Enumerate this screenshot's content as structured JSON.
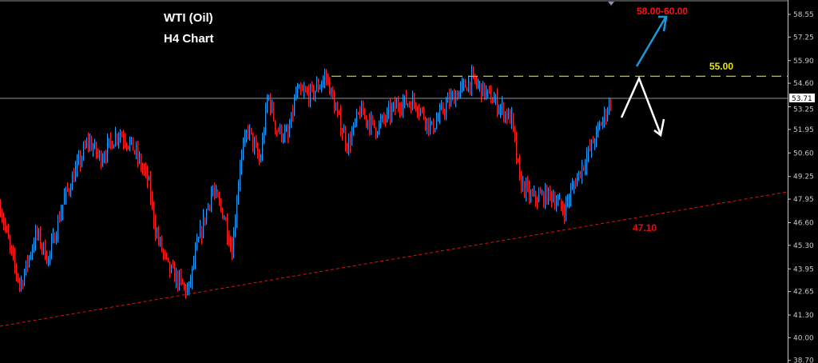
{
  "chart_data": {
    "type": "candlestick",
    "title": "WTI (Oil)",
    "subtitle": "H4 Chart",
    "ylim": [
      38.2,
      59.4
    ],
    "y_ticks": [
      "58.55",
      "57.25",
      "55.90",
      "54.60",
      "53.25",
      "51.95",
      "50.60",
      "49.25",
      "47.95",
      "46.60",
      "45.30",
      "43.95",
      "42.65",
      "41.30",
      "40.00",
      "38.70"
    ],
    "current_price": "53.71",
    "price_path": [
      [
        0,
        47.5
      ],
      [
        15,
        44.5
      ],
      [
        25,
        43.0
      ],
      [
        45,
        46.0
      ],
      [
        60,
        44.5
      ],
      [
        80,
        48.0
      ],
      [
        110,
        51.3
      ],
      [
        125,
        50.3
      ],
      [
        148,
        51.8
      ],
      [
        165,
        51.0
      ],
      [
        185,
        49.0
      ],
      [
        195,
        46.0
      ],
      [
        210,
        44.0
      ],
      [
        235,
        42.6
      ],
      [
        245,
        45.0
      ],
      [
        265,
        48.5
      ],
      [
        280,
        47.0
      ],
      [
        290,
        45.0
      ],
      [
        300,
        50.0
      ],
      [
        310,
        52.0
      ],
      [
        325,
        50.0
      ],
      [
        335,
        54.0
      ],
      [
        345,
        52.0
      ],
      [
        360,
        51.5
      ],
      [
        370,
        54.0
      ],
      [
        390,
        54.0
      ],
      [
        408,
        55.0
      ],
      [
        420,
        53.0
      ],
      [
        435,
        51.0
      ],
      [
        450,
        53.0
      ],
      [
        470,
        52.0
      ],
      [
        500,
        53.5
      ],
      [
        520,
        53.5
      ],
      [
        540,
        52.0
      ],
      [
        560,
        53.5
      ],
      [
        590,
        54.8
      ],
      [
        620,
        53.5
      ],
      [
        640,
        52.5
      ],
      [
        650,
        49.0
      ],
      [
        665,
        48.0
      ],
      [
        690,
        48.2
      ],
      [
        705,
        47.3
      ],
      [
        720,
        49.0
      ],
      [
        740,
        51.0
      ],
      [
        765,
        53.7
      ]
    ],
    "resistance": {
      "label": "55.00",
      "value": 55.0,
      "color": "#c8c800"
    },
    "support": {
      "label": "47.10",
      "start": 40.66,
      "end": 48.37,
      "color": "#e01010"
    },
    "target": {
      "label": "58.00-60.00",
      "color": "#ff1010"
    },
    "colors": {
      "bull": "#1ea0ff",
      "bear": "#ff2020",
      "up_arrow": "#1a9ad6",
      "down_arrow": "#ffffff"
    }
  }
}
